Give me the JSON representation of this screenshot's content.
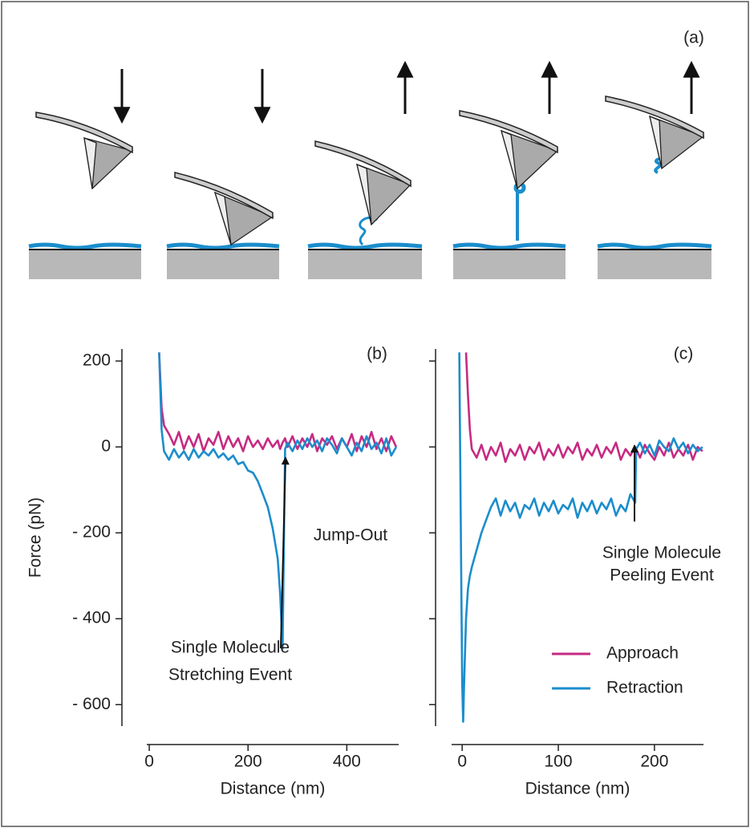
{
  "panel_a": {
    "label": "(a)"
  },
  "chart_data": [
    {
      "type": "line",
      "x_label": "Distance (nm)",
      "y_label": "Force (pN)",
      "annotations": [
        "(b)",
        "Jump-Out",
        "Single Molecule",
        "Stretching Event"
      ],
      "xlim": [
        -5,
        505
      ],
      "ylim": [
        -650,
        228
      ],
      "xticks": [
        0,
        200,
        400
      ],
      "yticks": [
        200,
        0,
        {
          "value": -200,
          "label": "- 200"
        },
        {
          "value": -400,
          "label": "- 400"
        },
        {
          "value": -600,
          "label": "- 600"
        }
      ],
      "show_ytick_labels": true,
      "legend": false,
      "series": [
        {
          "color": "#c62a82",
          "x": [
            20,
            25,
            30,
            40,
            50,
            60,
            70,
            80,
            90,
            100,
            110,
            120,
            130,
            140,
            150,
            160,
            170,
            180,
            190,
            200,
            210,
            220,
            230,
            240,
            250,
            260,
            265,
            270,
            275,
            280,
            290,
            300,
            310,
            320,
            330,
            340,
            350,
            360,
            370,
            380,
            390,
            400,
            410,
            420,
            430,
            440,
            450,
            460,
            470,
            480,
            490,
            500
          ],
          "values": [
            220,
            90,
            50,
            30,
            5,
            35,
            -5,
            25,
            0,
            30,
            -10,
            20,
            5,
            35,
            -5,
            25,
            0,
            20,
            -10,
            25,
            0,
            15,
            -5,
            20,
            0,
            15,
            -5,
            10,
            20,
            0,
            25,
            -5,
            20,
            0,
            30,
            -10,
            20,
            5,
            25,
            -5,
            20,
            0,
            30,
            -10,
            25,
            0,
            35,
            -5,
            20,
            -10,
            25,
            0
          ]
        },
        {
          "color": "#1b8dcc",
          "x": [
            20,
            25,
            30,
            40,
            50,
            60,
            70,
            80,
            90,
            100,
            110,
            120,
            130,
            140,
            150,
            160,
            170,
            180,
            190,
            200,
            210,
            220,
            230,
            240,
            250,
            260,
            265,
            270,
            275,
            280,
            290,
            300,
            310,
            320,
            330,
            340,
            350,
            360,
            370,
            380,
            390,
            400,
            410,
            420,
            430,
            440,
            450,
            460,
            470,
            480,
            490,
            500
          ],
          "values": [
            220,
            40,
            -10,
            -30,
            -5,
            -25,
            -10,
            -30,
            -5,
            -25,
            -10,
            -20,
            -5,
            -25,
            -15,
            -30,
            -20,
            -40,
            -35,
            -55,
            -60,
            -80,
            -110,
            -140,
            -190,
            -260,
            -340,
            -470,
            -5,
            10,
            -10,
            15,
            -5,
            20,
            0,
            15,
            -10,
            20,
            5,
            -15,
            20,
            0,
            -20,
            10,
            -10,
            25,
            -5,
            10,
            -15,
            20,
            -20,
            0
          ]
        }
      ]
    },
    {
      "type": "line",
      "x_label": "Distance (nm)",
      "annotations": [
        "(c)",
        "Single Molecule",
        "Peeling Event"
      ],
      "xlim": [
        -11,
        251
      ],
      "ylim": [
        -650,
        228
      ],
      "xticks": [
        0,
        100,
        200
      ],
      "yticks": [
        200,
        0,
        -200,
        -400,
        -600
      ],
      "show_ytick_labels": false,
      "legend": "lower right",
      "series": [
        {
          "name": "Approach",
          "color": "#c62a82",
          "x": [
            4,
            6,
            8,
            10,
            15,
            20,
            25,
            30,
            35,
            40,
            45,
            50,
            55,
            60,
            65,
            70,
            75,
            80,
            85,
            90,
            95,
            100,
            105,
            110,
            115,
            120,
            125,
            130,
            135,
            140,
            145,
            150,
            155,
            160,
            165,
            170,
            175,
            180,
            185,
            190,
            195,
            200,
            205,
            210,
            215,
            220,
            225,
            230,
            235,
            240,
            245,
            250
          ],
          "values": [
            220,
            120,
            40,
            -5,
            -25,
            5,
            -30,
            0,
            -20,
            10,
            -35,
            -5,
            -20,
            5,
            -30,
            0,
            -15,
            10,
            -30,
            -5,
            -20,
            5,
            -25,
            0,
            -15,
            10,
            -30,
            -5,
            -20,
            5,
            -25,
            0,
            -15,
            10,
            -30,
            -5,
            -20,
            0,
            -25,
            5,
            -15,
            -30,
            0,
            -20,
            10,
            -25,
            -5,
            -20,
            5,
            -30,
            0,
            -10
          ]
        },
        {
          "name": "Retraction",
          "color": "#1b8dcc",
          "x": [
            -3,
            -1,
            0,
            1,
            2,
            4,
            6,
            8,
            10,
            15,
            20,
            25,
            30,
            35,
            40,
            45,
            50,
            55,
            60,
            65,
            70,
            75,
            80,
            85,
            90,
            95,
            100,
            105,
            110,
            115,
            120,
            125,
            130,
            135,
            140,
            145,
            150,
            155,
            160,
            165,
            170,
            175,
            180,
            181,
            185,
            190,
            195,
            200,
            205,
            210,
            215,
            220,
            225,
            230,
            235,
            240,
            245,
            250
          ],
          "values": [
            220,
            -300,
            -550,
            -640,
            -550,
            -400,
            -330,
            -300,
            -280,
            -240,
            -200,
            -170,
            -140,
            -120,
            -160,
            -125,
            -150,
            -130,
            -165,
            -135,
            -145,
            -120,
            -160,
            -130,
            -150,
            -125,
            -155,
            -135,
            -145,
            -120,
            -165,
            -130,
            -150,
            -125,
            -155,
            -130,
            -145,
            -120,
            -160,
            -135,
            -150,
            -110,
            -130,
            -5,
            10,
            -15,
            5,
            -20,
            15,
            0,
            -10,
            20,
            -5,
            10,
            -15,
            5,
            -10,
            0
          ]
        }
      ]
    }
  ]
}
